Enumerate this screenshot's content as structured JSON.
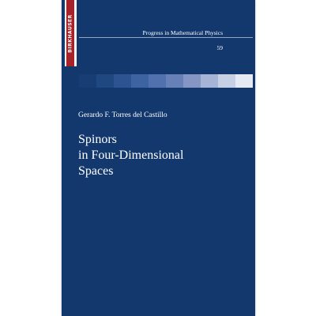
{
  "publisher": "BIRKHAUSER",
  "series": {
    "name": "Progress in Mathematical Physics",
    "volume": "59"
  },
  "author": "Gerardo F. Torres del Castillo",
  "title_lines": [
    "Spinors",
    "in Four-Dimensional",
    "Spaces"
  ],
  "colors": {
    "cover": "#12386e",
    "band": "#a8222a",
    "gradient": [
      "#173d74",
      "#1f4780",
      "#2d5490",
      "#3d64a0",
      "#5071ae",
      "#6880b8",
      "#8596c5",
      "#a6b4d6",
      "#c8d0e4",
      "#e6eaf2"
    ]
  }
}
